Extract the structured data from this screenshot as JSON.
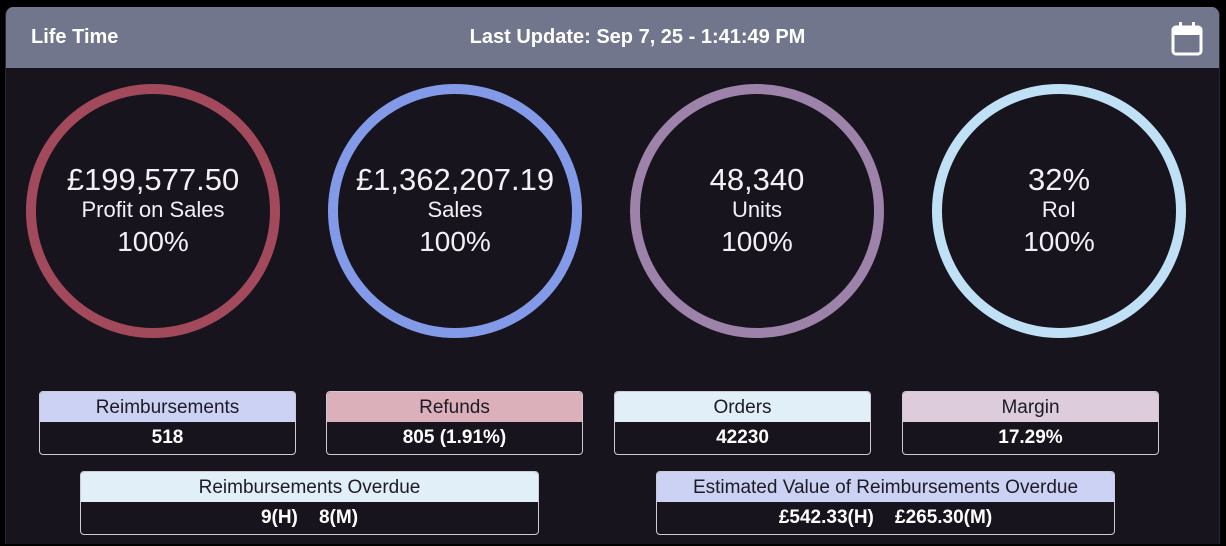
{
  "header": {
    "title": "Life Time",
    "last_update": "Last Update: Sep 7, 25 - 1:41:49 PM",
    "calendar_icon": "calendar-icon"
  },
  "rings": [
    {
      "value": "£199,577.50",
      "label": "Profit on Sales",
      "pct": "100%",
      "color": "#a24a5b",
      "fill": 1.0
    },
    {
      "value": "£1,362,207.19",
      "label": "Sales",
      "pct": "100%",
      "color": "#839ae8",
      "fill": 1.0
    },
    {
      "value": "48,340",
      "label": "Units",
      "pct": "100%",
      "color": "#9d82aa",
      "fill": 1.0
    },
    {
      "value": "32%",
      "label": "RoI",
      "pct": "100%",
      "color": "#c0e0f6",
      "fill": 1.0
    }
  ],
  "stats": [
    {
      "label": "Reimbursements",
      "value": "518",
      "color": "#ccd2f3"
    },
    {
      "label": "Refunds",
      "value": "805 (1.91%)",
      "color": "#dbb0bb"
    },
    {
      "label": "Orders",
      "value": "42230",
      "color": "#e1eff9"
    },
    {
      "label": "Margin",
      "value": "17.29%",
      "color": "#dcccdc"
    }
  ],
  "overdue": {
    "label": "Reimbursements Overdue",
    "value": "9(H)    8(M)",
    "color": "#e1eff9"
  },
  "estimated": {
    "label": "Estimated Value of Reimbursements Overdue",
    "value": "£542.33(H)    £265.30(M)",
    "color": "#ccd2f3"
  }
}
